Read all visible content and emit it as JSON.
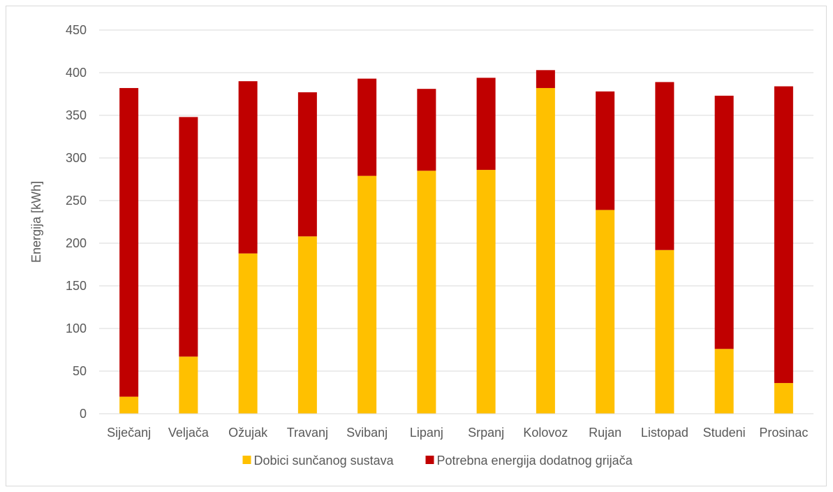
{
  "chart_data": {
    "type": "bar",
    "stacked": true,
    "title": "",
    "xlabel": "",
    "ylabel": "Energija [kWh]",
    "ylim": [
      0,
      450
    ],
    "yticks": [
      0,
      50,
      100,
      150,
      200,
      250,
      300,
      350,
      400,
      450
    ],
    "grid": true,
    "legend_position": "bottom",
    "categories": [
      "Siječanj",
      "Veljača",
      "Ožujak",
      "Travanj",
      "Svibanj",
      "Lipanj",
      "Srpanj",
      "Kolovoz",
      "Rujan",
      "Listopad",
      "Studeni",
      "Prosinac"
    ],
    "series": [
      {
        "name": "Dobici sunčanog sustava",
        "color": "#ffc000",
        "values": [
          20,
          67,
          188,
          208,
          279,
          285,
          286,
          382,
          239,
          192,
          76,
          36
        ]
      },
      {
        "name": "Potrebna energija dodatnog grijača",
        "color": "#c00000",
        "values": [
          362,
          281,
          202,
          169,
          114,
          96,
          108,
          21,
          139,
          197,
          297,
          348
        ]
      }
    ]
  }
}
